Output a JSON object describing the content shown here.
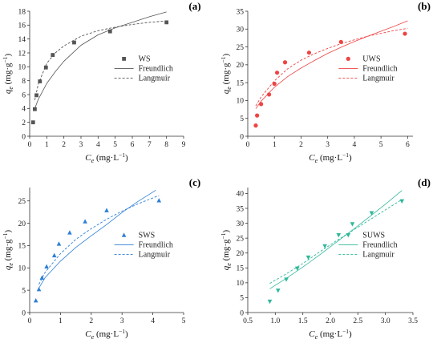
{
  "chart_data": [
    {
      "type": "scatter",
      "panel_label": "(a)",
      "xlabel": "Ce (mg·L−1)",
      "ylabel": "qe (mg·g−1)",
      "xlim": [
        0,
        9
      ],
      "ylim": [
        0,
        18
      ],
      "xticks": [
        0,
        1,
        2,
        3,
        4,
        5,
        6,
        7,
        8,
        9
      ],
      "yticks": [
        0,
        2,
        4,
        6,
        8,
        10,
        12,
        14,
        16,
        18
      ],
      "xtick_labels": [
        "0",
        "1",
        "2",
        "3",
        "4",
        "5",
        "6",
        "7",
        "8",
        "9"
      ],
      "ytick_labels": [
        "0",
        "2",
        "4",
        "6",
        "8",
        "10",
        "12",
        "14",
        "16",
        "18"
      ],
      "color": "#555555",
      "marker": "square",
      "legend_position": "right",
      "series": [
        {
          "name": "WS",
          "kind": "points",
          "x": [
            0.2,
            0.3,
            0.4,
            0.6,
            0.95,
            1.35,
            2.6,
            4.7,
            8.0
          ],
          "y": [
            2.0,
            3.9,
            5.9,
            7.9,
            9.9,
            11.7,
            13.5,
            15.1,
            16.4
          ]
        },
        {
          "name": "Freundlich",
          "kind": "line",
          "dash": "solid",
          "x": [
            0.3,
            0.5,
            1.0,
            1.5,
            2.0,
            3.0,
            4.0,
            5.0,
            6.0,
            7.0,
            8.0
          ],
          "y": [
            4.0,
            5.3,
            7.6,
            9.3,
            10.8,
            13.1,
            14.6,
            15.6,
            16.4,
            17.2,
            17.9
          ]
        },
        {
          "name": "Langmuir",
          "kind": "line",
          "dash": "dashed",
          "x": [
            0.3,
            0.5,
            1.0,
            1.5,
            2.0,
            3.0,
            4.0,
            5.0,
            6.0,
            7.0,
            8.0
          ],
          "y": [
            5.2,
            7.5,
            10.5,
            12.0,
            13.0,
            14.4,
            15.2,
            15.7,
            16.1,
            16.4,
            16.6
          ]
        }
      ]
    },
    {
      "type": "scatter",
      "panel_label": "(b)",
      "xlabel": "Ce (mg·L−1)",
      "ylabel": "qe (mg·g−1)",
      "xlim": [
        0,
        6.2
      ],
      "ylim": [
        0,
        35
      ],
      "xticks": [
        0,
        1,
        2,
        3,
        4,
        5,
        6
      ],
      "yticks": [
        0,
        5,
        10,
        15,
        20,
        25,
        30,
        35
      ],
      "xtick_labels": [
        "0",
        "1",
        "2",
        "3",
        "4",
        "5",
        "6"
      ],
      "ytick_labels": [
        "0",
        "5",
        "10",
        "15",
        "20",
        "25",
        "30",
        "35"
      ],
      "color": "#ee4444",
      "marker": "circle",
      "legend_position": "right",
      "series": [
        {
          "name": "UWS",
          "kind": "points",
          "x": [
            0.3,
            0.35,
            0.5,
            0.8,
            1.0,
            1.1,
            1.4,
            2.3,
            3.5,
            5.9
          ],
          "y": [
            3.0,
            5.8,
            9.0,
            11.7,
            14.7,
            17.8,
            20.7,
            23.4,
            26.4,
            28.7
          ]
        },
        {
          "name": "Freundlich",
          "kind": "line",
          "dash": "solid",
          "x": [
            0.3,
            0.5,
            1.0,
            1.5,
            2.0,
            2.5,
            3.0,
            3.5,
            4.0,
            4.5,
            5.0,
            5.5,
            6.0
          ],
          "y": [
            7.7,
            9.8,
            13.7,
            16.7,
            19.1,
            21.2,
            23.2,
            24.9,
            26.5,
            28.0,
            29.4,
            30.8,
            32.3
          ]
        },
        {
          "name": "Langmuir",
          "kind": "line",
          "dash": "dashed",
          "x": [
            0.3,
            0.5,
            1.0,
            1.5,
            2.0,
            2.5,
            3.0,
            3.5,
            4.0,
            4.5,
            5.0,
            5.5,
            6.0
          ],
          "y": [
            8.5,
            11.0,
            15.5,
            18.9,
            21.3,
            23.1,
            24.6,
            25.9,
            27.0,
            28.0,
            28.8,
            29.6,
            30.2
          ]
        }
      ]
    },
    {
      "type": "scatter",
      "panel_label": "(c)",
      "xlabel": "Ce (mg·L−1)",
      "ylabel": "qe (mg·g−1)",
      "xlim": [
        0,
        5
      ],
      "ylim": [
        0,
        28
      ],
      "xticks": [
        0,
        1,
        2,
        3,
        4,
        5
      ],
      "yticks": [
        0,
        5,
        10,
        15,
        20,
        25
      ],
      "xtick_labels": [
        "0",
        "1",
        "2",
        "3",
        "4",
        "5"
      ],
      "ytick_labels": [
        "0",
        "5",
        "10",
        "15",
        "20",
        "25"
      ],
      "color": "#2f7fd6",
      "marker": "triangle-up",
      "legend_position": "right",
      "series": [
        {
          "name": "SWS",
          "kind": "points",
          "x": [
            0.2,
            0.3,
            0.4,
            0.55,
            0.8,
            0.95,
            1.3,
            1.8,
            2.5,
            4.2
          ],
          "y": [
            2.7,
            5.2,
            7.8,
            10.3,
            12.8,
            15.4,
            17.9,
            20.4,
            22.9,
            25.1
          ]
        },
        {
          "name": "Freundlich",
          "kind": "line",
          "dash": "solid",
          "x": [
            0.3,
            0.5,
            1.0,
            1.5,
            2.0,
            2.5,
            3.0,
            3.5,
            4.1
          ],
          "y": [
            5.5,
            7.8,
            11.5,
            14.6,
            17.2,
            19.7,
            22.4,
            24.8,
            27.4
          ]
        },
        {
          "name": "Langmuir",
          "kind": "line",
          "dash": "dashed",
          "x": [
            0.3,
            0.5,
            1.0,
            1.5,
            2.0,
            2.5,
            3.0,
            3.5,
            4.2
          ],
          "y": [
            6.3,
            9.0,
            13.2,
            16.4,
            18.8,
            20.9,
            22.7,
            24.3,
            26.2
          ]
        }
      ]
    },
    {
      "type": "scatter",
      "panel_label": "(d)",
      "xlabel": "Ce (mg·L−1)",
      "ylabel": "qe (mg·g−1)",
      "xlim": [
        0.5,
        3.5
      ],
      "ylim": [
        0,
        42
      ],
      "xticks": [
        0.5,
        1.0,
        1.5,
        2.0,
        2.5,
        3.0,
        3.5
      ],
      "yticks": [
        0,
        5,
        10,
        15,
        20,
        25,
        30,
        35,
        40
      ],
      "xtick_labels": [
        "0.5",
        "1.0",
        "1.5",
        "2.0",
        "2.5",
        "3.0",
        "3.5"
      ],
      "ytick_labels": [
        "0",
        "5",
        "10",
        "15",
        "20",
        "25",
        "30",
        "35",
        "40"
      ],
      "color": "#2fb89a",
      "marker": "triangle-down",
      "legend_position": "right",
      "series": [
        {
          "name": "SUWS",
          "kind": "points",
          "x": [
            0.9,
            1.05,
            1.2,
            1.4,
            1.6,
            1.9,
            2.15,
            2.4,
            2.75,
            3.3
          ],
          "y": [
            3.7,
            7.4,
            11.1,
            14.8,
            18.5,
            22.3,
            26.0,
            29.7,
            33.4,
            37.4
          ]
        },
        {
          "name": "Freundlich",
          "kind": "line",
          "dash": "solid",
          "x": [
            0.9,
            1.2,
            1.5,
            1.8,
            2.1,
            2.4,
            2.7,
            3.0,
            3.3
          ],
          "y": [
            8.0,
            11.5,
            15.3,
            19.3,
            23.5,
            27.7,
            32.0,
            36.4,
            41.0
          ]
        },
        {
          "name": "Langmuir",
          "kind": "line",
          "dash": "dashed",
          "x": [
            0.9,
            1.2,
            1.5,
            1.8,
            2.1,
            2.4,
            2.7,
            3.0,
            3.3
          ],
          "y": [
            9.8,
            13.0,
            16.5,
            20.3,
            24.0,
            27.5,
            31.0,
            34.5,
            38.0
          ]
        }
      ]
    }
  ]
}
